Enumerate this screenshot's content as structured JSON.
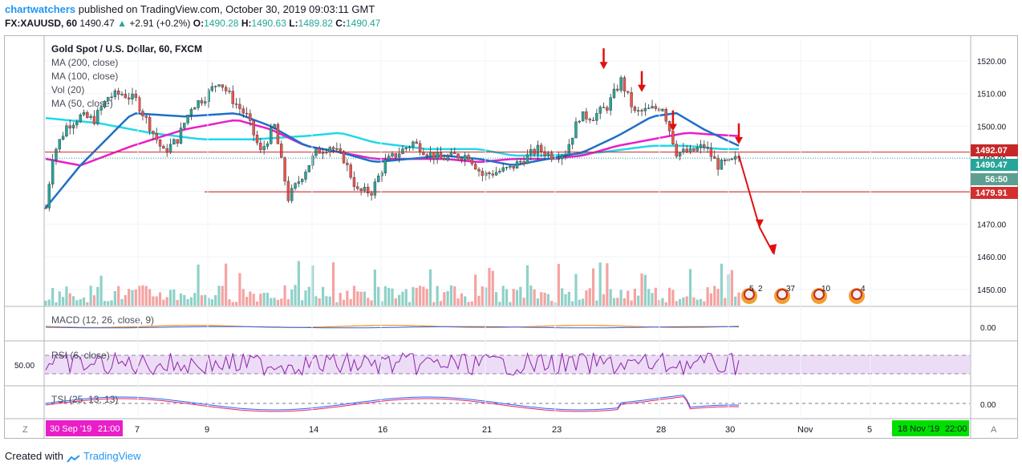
{
  "header": {
    "user": "chartwatchers",
    "published": "published on TradingView.com, October 30, 2019 09:03:11 GMT",
    "symbol": "FX:XAUUSD, 60",
    "last": "1490.47",
    "change": "+2.91 (+0.2%)",
    "o_label": "O:",
    "o": "1490.28",
    "h_label": "H:",
    "h": "1490.63",
    "l_label": "L:",
    "l": "1489.82",
    "c_label": "C:",
    "c": "1490.47"
  },
  "legend": {
    "title": "Gold Spot / U.S. Dollar, 60, FXCM",
    "ma200": "MA (200, close)",
    "ma100": "MA (100, close)",
    "vol": "Vol (20)",
    "ma50": "MA (50, close)"
  },
  "panes": {
    "macd": "MACD (12, 26, close, 9)",
    "rsi": "RSI (6, close)",
    "tsi": "TSI (25, 13, 13)",
    "rsi_axis": "50.00",
    "macd_axis": "0.00",
    "tsi_axis": "0.00"
  },
  "price_tags": {
    "resistance": "1492.07",
    "last": "1490.47",
    "countdown": "56:50",
    "support": "1479.91"
  },
  "time_axis": {
    "left_date": "30 Sep '19",
    "left_time": "21:00",
    "right_date": "18 Nov '19",
    "right_time": "22:00",
    "z_button": "Z",
    "a_button": "A"
  },
  "events": [
    "5",
    "2",
    "37",
    "10",
    "4"
  ],
  "footer": {
    "created": "Created with",
    "brand": "TradingView"
  },
  "colors": {
    "up": "#26a69a",
    "down": "#ef5350",
    "ma50": "#1e6fc8",
    "ma100": "#e91ec8",
    "ma200": "#20d8e8",
    "annotation": "#e01010",
    "macd": "#ff8a00",
    "rsi": "#8e24aa"
  },
  "chart_data": {
    "type": "candlestick",
    "symbol": "XAUUSD",
    "interval": "60",
    "source": "FXCM",
    "y_ticks": [
      1520,
      1510,
      1500,
      1490,
      1480,
      1470,
      1460,
      1450
    ],
    "ylim": [
      1445,
      1525
    ],
    "x_ticks": [
      "7",
      "9",
      "14",
      "16",
      "21",
      "23",
      "28",
      "30",
      "Nov",
      "5"
    ],
    "price_path": [
      [
        0,
        1475
      ],
      [
        2,
        1491
      ],
      [
        6,
        1500
      ],
      [
        10,
        1503
      ],
      [
        14,
        1502
      ],
      [
        18,
        1509
      ],
      [
        22,
        1510
      ],
      [
        26,
        1508
      ],
      [
        30,
        1500
      ],
      [
        34,
        1492
      ],
      [
        38,
        1496
      ],
      [
        42,
        1506
      ],
      [
        46,
        1509
      ],
      [
        50,
        1514
      ],
      [
        54,
        1508
      ],
      [
        58,
        1503
      ],
      [
        62,
        1492
      ],
      [
        66,
        1500
      ],
      [
        70,
        1478
      ],
      [
        74,
        1485
      ],
      [
        78,
        1492
      ],
      [
        82,
        1494
      ],
      [
        86,
        1490
      ],
      [
        90,
        1480
      ],
      [
        94,
        1480
      ],
      [
        98,
        1489
      ],
      [
        102,
        1492
      ],
      [
        106,
        1495
      ],
      [
        110,
        1492
      ],
      [
        114,
        1490
      ],
      [
        118,
        1491
      ],
      [
        122,
        1491
      ],
      [
        126,
        1485
      ],
      [
        130,
        1486
      ],
      [
        134,
        1487
      ],
      [
        138,
        1490
      ],
      [
        142,
        1493
      ],
      [
        146,
        1491
      ],
      [
        150,
        1492
      ],
      [
        154,
        1503
      ],
      [
        158,
        1503
      ],
      [
        162,
        1506
      ],
      [
        166,
        1514
      ],
      [
        170,
        1504
      ],
      [
        174,
        1505
      ],
      [
        178,
        1506
      ],
      [
        182,
        1492
      ],
      [
        186,
        1492
      ],
      [
        190,
        1494
      ],
      [
        194,
        1488
      ],
      [
        198,
        1489
      ],
      [
        200,
        1490.47
      ]
    ],
    "ma50_path": [
      [
        0,
        1475
      ],
      [
        10,
        1488
      ],
      [
        25,
        1504
      ],
      [
        40,
        1503
      ],
      [
        55,
        1504
      ],
      [
        65,
        1500
      ],
      [
        75,
        1494
      ],
      [
        85,
        1492
      ],
      [
        95,
        1489
      ],
      [
        105,
        1490
      ],
      [
        115,
        1491
      ],
      [
        125,
        1490
      ],
      [
        135,
        1488
      ],
      [
        145,
        1490
      ],
      [
        155,
        1492
      ],
      [
        165,
        1497
      ],
      [
        175,
        1503
      ],
      [
        182,
        1504
      ],
      [
        190,
        1499
      ],
      [
        200,
        1494
      ]
    ],
    "ma100_path": [
      [
        0,
        1490
      ],
      [
        10,
        1488
      ],
      [
        25,
        1494
      ],
      [
        40,
        1499
      ],
      [
        55,
        1502
      ],
      [
        65,
        1499
      ],
      [
        75,
        1494
      ],
      [
        85,
        1492
      ],
      [
        95,
        1490
      ],
      [
        105,
        1490
      ],
      [
        115,
        1490
      ],
      [
        125,
        1489
      ],
      [
        135,
        1490
      ],
      [
        145,
        1490
      ],
      [
        155,
        1491
      ],
      [
        165,
        1494
      ],
      [
        175,
        1496
      ],
      [
        185,
        1498
      ],
      [
        192,
        1497.5
      ],
      [
        200,
        1497
      ]
    ],
    "ma200_path": [
      [
        0,
        1502.5
      ],
      [
        15,
        1501
      ],
      [
        30,
        1498
      ],
      [
        45,
        1496
      ],
      [
        60,
        1496
      ],
      [
        75,
        1497
      ],
      [
        85,
        1498
      ],
      [
        95,
        1495
      ],
      [
        110,
        1493
      ],
      [
        125,
        1493
      ],
      [
        135,
        1491
      ],
      [
        145,
        1491
      ],
      [
        160,
        1492
      ],
      [
        175,
        1494
      ],
      [
        185,
        1494
      ],
      [
        195,
        1493
      ],
      [
        200,
        1493
      ]
    ],
    "resistance_level": 1492.07,
    "support_level": 1479.91,
    "last_price": 1490.47,
    "projection": [
      [
        200,
        1491
      ],
      [
        206,
        1469
      ],
      [
        210,
        1461
      ]
    ],
    "marked_highs": [
      [
        161,
        1517
      ],
      [
        172,
        1510
      ],
      [
        181,
        1498
      ],
      [
        200,
        1494
      ]
    ]
  }
}
